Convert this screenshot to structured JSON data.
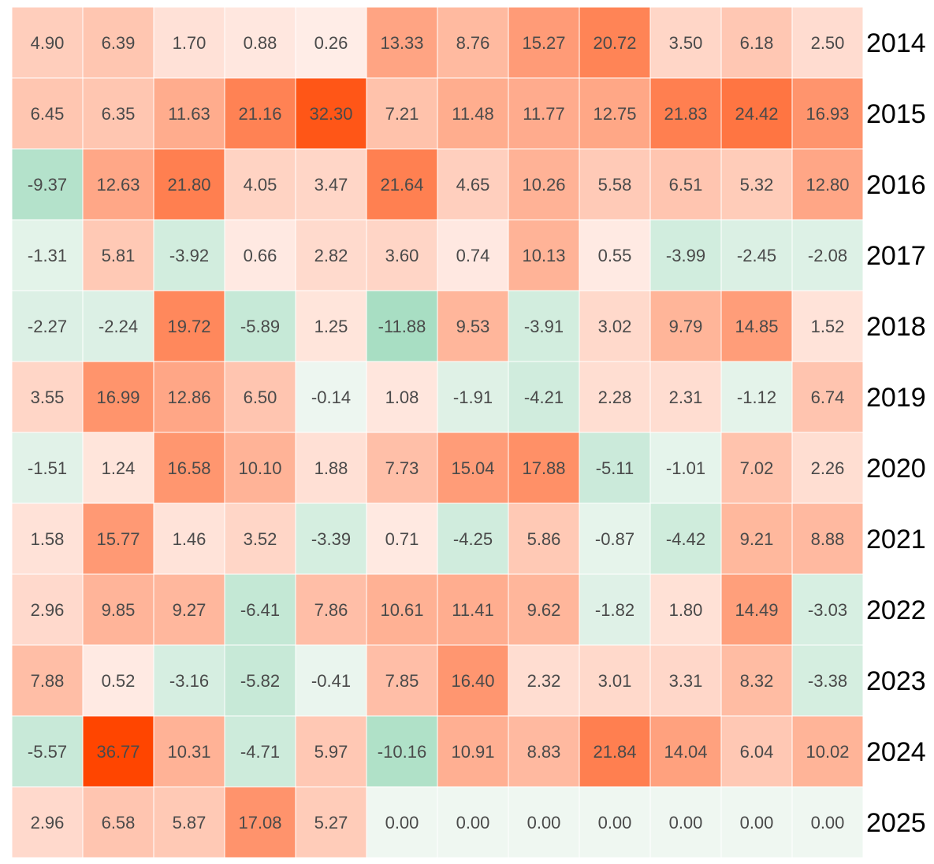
{
  "chart_data": {
    "type": "heatmap",
    "title": "",
    "xlabel": "",
    "ylabel": "",
    "row_labels": [
      "2014",
      "2015",
      "2016",
      "2017",
      "2018",
      "2019",
      "2020",
      "2021",
      "2022",
      "2023",
      "2024",
      "2025"
    ],
    "row_label_position": "right",
    "grid": false,
    "legend": "none",
    "values": [
      [
        4.9,
        6.39,
        1.7,
        0.88,
        0.26,
        13.33,
        8.76,
        15.27,
        20.72,
        3.5,
        6.18,
        2.5
      ],
      [
        6.45,
        6.35,
        11.63,
        21.16,
        32.3,
        7.21,
        11.48,
        11.77,
        12.75,
        21.83,
        24.42,
        16.93
      ],
      [
        -9.37,
        12.63,
        21.8,
        4.05,
        3.47,
        21.64,
        4.65,
        10.26,
        5.58,
        6.51,
        5.32,
        12.8
      ],
      [
        -1.31,
        5.81,
        -3.92,
        0.66,
        2.82,
        3.6,
        0.74,
        10.13,
        0.55,
        -3.99,
        -2.45,
        -2.08
      ],
      [
        -2.27,
        -2.24,
        19.72,
        -5.89,
        1.25,
        -11.88,
        9.53,
        -3.91,
        3.02,
        9.79,
        14.85,
        1.52
      ],
      [
        3.55,
        16.99,
        12.86,
        6.5,
        -0.14,
        1.08,
        -1.91,
        -4.21,
        2.28,
        2.31,
        -1.12,
        6.74
      ],
      [
        -1.51,
        1.24,
        16.58,
        10.1,
        1.88,
        7.73,
        15.04,
        17.88,
        -5.11,
        -1.01,
        7.02,
        2.26
      ],
      [
        1.58,
        15.77,
        1.46,
        3.52,
        -3.39,
        0.71,
        -4.25,
        5.86,
        -0.87,
        -4.42,
        9.21,
        8.88
      ],
      [
        2.96,
        9.85,
        9.27,
        -6.41,
        7.86,
        10.61,
        11.41,
        9.62,
        -1.82,
        1.8,
        14.49,
        -3.03
      ],
      [
        7.88,
        0.52,
        -3.16,
        -5.82,
        -0.41,
        7.85,
        16.4,
        2.32,
        3.01,
        3.31,
        8.32,
        -3.38
      ],
      [
        -5.57,
        36.77,
        10.31,
        -4.71,
        5.97,
        -10.16,
        10.91,
        8.83,
        21.84,
        14.04,
        6.04,
        10.02
      ],
      [
        2.96,
        6.58,
        5.87,
        17.08,
        5.27,
        0.0,
        0.0,
        0.0,
        0.0,
        0.0,
        0.0,
        0.0
      ]
    ],
    "colors": {
      "positive_max": "#ff4500",
      "positive_light": "#fff0eb",
      "negative_max": "#a8dec3",
      "negative_light": "#eff7f1",
      "zero": "#eff7f1",
      "cell_border": "#ffffff",
      "cell_text": "#4a4a4a",
      "label_text": "#000000"
    }
  }
}
